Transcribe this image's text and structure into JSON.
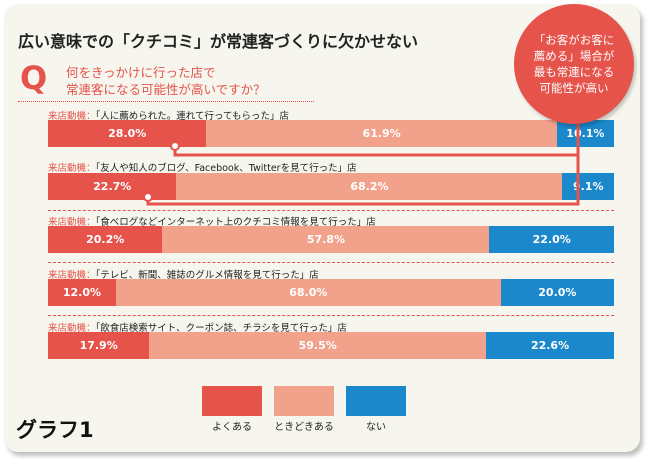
{
  "title": "広い意味での「クチコミ」が常連客づくりに欠かせない",
  "question": {
    "mark": "Q",
    "line1": "何をきっかけに行った店で",
    "line2": "常連客になる可能性が高いですか？"
  },
  "callout": "「お客がお客に\n薦める」場合が\n最も常連になる\n可能性が高い",
  "motive_prefix": "来店動機：",
  "graph_label": "グラフ1",
  "colors": {
    "yoku": "#e5534b",
    "toki": "#f2a18a",
    "nai": "#1b88cc"
  },
  "chart_data": {
    "type": "bar",
    "orientation": "horizontal",
    "stacked": "100%",
    "categories": [
      "「人に薦められた。連れて行ってもらった」店",
      "「友人や知人のブログ、Facebook、Twitterを見て行った」店",
      "「食べログなどインターネット上のクチコミ情報を見て行った」店",
      "「テレビ、新聞、雑誌のグルメ情報を見て行った」店",
      "「飲食店検索サイト、クーポン誌、チラシを見て行った」店"
    ],
    "series": [
      {
        "name": "よくある",
        "values": [
          28.0,
          22.7,
          20.2,
          12.0,
          17.9
        ],
        "labels": [
          "28.0%",
          "22.7%",
          "20.2%",
          "12.0%",
          "17.9%"
        ]
      },
      {
        "name": "ときどきある",
        "values": [
          61.9,
          68.2,
          57.8,
          68.0,
          59.5
        ],
        "labels": [
          "61.9%",
          "68.2%",
          "57.8%",
          "68.0%",
          "59.5%"
        ]
      },
      {
        "name": "ない",
        "values": [
          10.1,
          9.1,
          22.0,
          20.0,
          22.6
        ],
        "labels": [
          "10.1%",
          "9.1%",
          "22.0%",
          "20.0%",
          "22.6%"
        ]
      }
    ],
    "legend": "bottom"
  }
}
